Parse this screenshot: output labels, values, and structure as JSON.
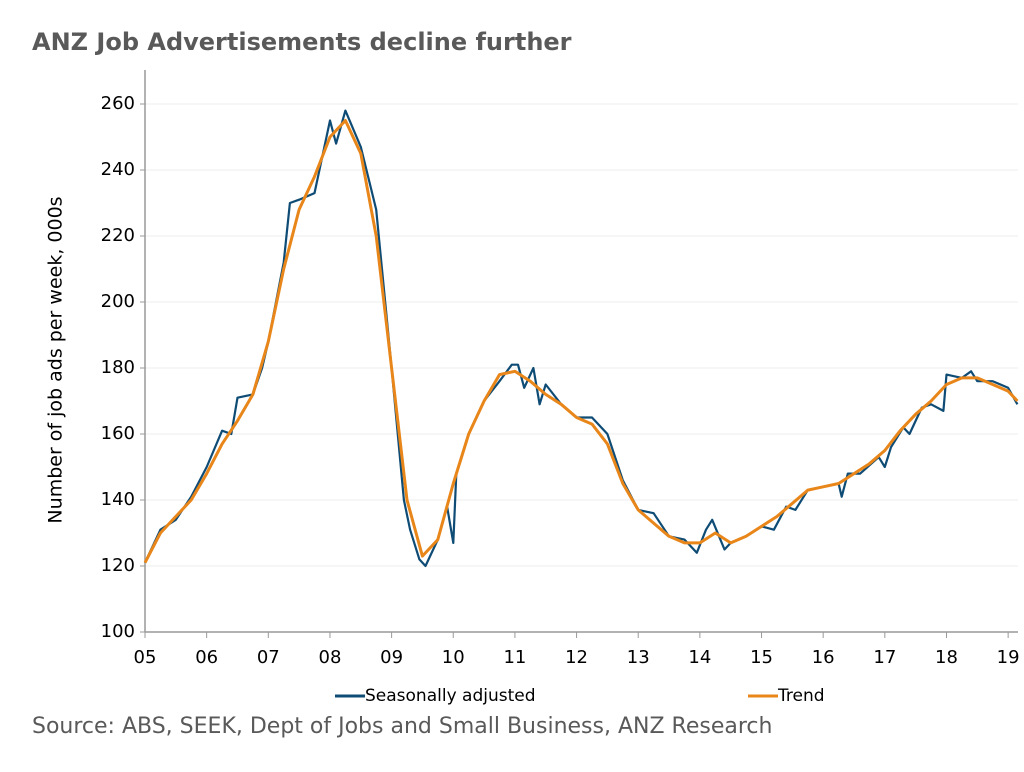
{
  "chart_data": {
    "type": "line",
    "title": "ANZ Job Advertisements decline further",
    "ylabel": "Number of job ads per week, 000s",
    "source": "Source: ABS, SEEK, Dept of Jobs and Small Business, ANZ Research",
    "xlim": [
      5,
      19.16
    ],
    "xticks": [
      {
        "value": 5,
        "label": "05"
      },
      {
        "value": 6,
        "label": "06"
      },
      {
        "value": 7,
        "label": "07"
      },
      {
        "value": 8,
        "label": "08"
      },
      {
        "value": 9,
        "label": "09"
      },
      {
        "value": 10,
        "label": "10"
      },
      {
        "value": 11,
        "label": "11"
      },
      {
        "value": 12,
        "label": "12"
      },
      {
        "value": 13,
        "label": "13"
      },
      {
        "value": 14,
        "label": "14"
      },
      {
        "value": 15,
        "label": "15"
      },
      {
        "value": 16,
        "label": "16"
      },
      {
        "value": 17,
        "label": "17"
      },
      {
        "value": 18,
        "label": "18"
      },
      {
        "value": 19,
        "label": "19"
      }
    ],
    "ylim": [
      100,
      260
    ],
    "yticks": [
      100,
      120,
      140,
      160,
      180,
      200,
      220,
      240,
      260
    ],
    "grid": true,
    "legend": "bottom",
    "series": [
      {
        "name": "Seasonally adjusted",
        "color": "#0f4c75",
        "width": 2.2,
        "x": [
          5.0,
          5.25,
          5.5,
          5.75,
          6.0,
          6.25,
          6.4,
          6.5,
          6.75,
          6.9,
          7.0,
          7.25,
          7.35,
          7.5,
          7.75,
          8.0,
          8.1,
          8.25,
          8.5,
          8.75,
          9.0,
          9.2,
          9.3,
          9.45,
          9.55,
          9.75,
          9.9,
          10.0,
          10.05,
          10.25,
          10.5,
          10.75,
          10.95,
          11.05,
          11.15,
          11.3,
          11.4,
          11.5,
          11.75,
          12.0,
          12.25,
          12.5,
          12.75,
          13.0,
          13.25,
          13.5,
          13.75,
          13.95,
          14.1,
          14.2,
          14.4,
          14.5,
          14.75,
          15.0,
          15.2,
          15.4,
          15.55,
          15.75,
          16.0,
          16.25,
          16.3,
          16.4,
          16.6,
          16.9,
          17.0,
          17.1,
          17.3,
          17.4,
          17.6,
          17.75,
          17.95,
          18.0,
          18.25,
          18.4,
          18.5,
          18.75,
          19.0,
          19.15
        ],
        "values": [
          121,
          131,
          134,
          141,
          150,
          161,
          160,
          171,
          172,
          180,
          188,
          212,
          230,
          231,
          233,
          255,
          248,
          258,
          247,
          228,
          180,
          140,
          131,
          122,
          120,
          128,
          138,
          127,
          148,
          160,
          170,
          176,
          181,
          181,
          174,
          180,
          169,
          175,
          169,
          165,
          165,
          160,
          146,
          137,
          136,
          129,
          128,
          124,
          131,
          134,
          125,
          127,
          129,
          132,
          131,
          138,
          137,
          143,
          144,
          145,
          141,
          148,
          148,
          153,
          150,
          156,
          162,
          160,
          168,
          169,
          167,
          178,
          177,
          179,
          176,
          176,
          174,
          169
        ]
      },
      {
        "name": "Trend",
        "color": "#e8861a",
        "width": 3,
        "x": [
          5.0,
          5.25,
          5.5,
          5.75,
          6.0,
          6.25,
          6.5,
          6.75,
          7.0,
          7.25,
          7.5,
          7.75,
          8.0,
          8.25,
          8.5,
          8.75,
          9.0,
          9.25,
          9.5,
          9.75,
          10.0,
          10.25,
          10.5,
          10.75,
          11.0,
          11.25,
          11.5,
          11.75,
          12.0,
          12.25,
          12.5,
          12.75,
          13.0,
          13.25,
          13.5,
          13.75,
          14.0,
          14.25,
          14.5,
          14.75,
          15.0,
          15.25,
          15.5,
          15.75,
          16.0,
          16.25,
          16.5,
          16.75,
          17.0,
          17.25,
          17.5,
          17.75,
          18.0,
          18.25,
          18.5,
          18.75,
          19.0,
          19.15
        ],
        "values": [
          121,
          130,
          135,
          140,
          148,
          157,
          164,
          172,
          188,
          210,
          228,
          238,
          250,
          255,
          245,
          220,
          180,
          140,
          123,
          128,
          145,
          160,
          170,
          178,
          179,
          176,
          172,
          169,
          165,
          163,
          157,
          145,
          137,
          133,
          129,
          127,
          127,
          130,
          127,
          129,
          132,
          135,
          139,
          143,
          144,
          145,
          148,
          151,
          155,
          161,
          166,
          170,
          175,
          177,
          177,
          175,
          173,
          170
        ]
      }
    ]
  }
}
